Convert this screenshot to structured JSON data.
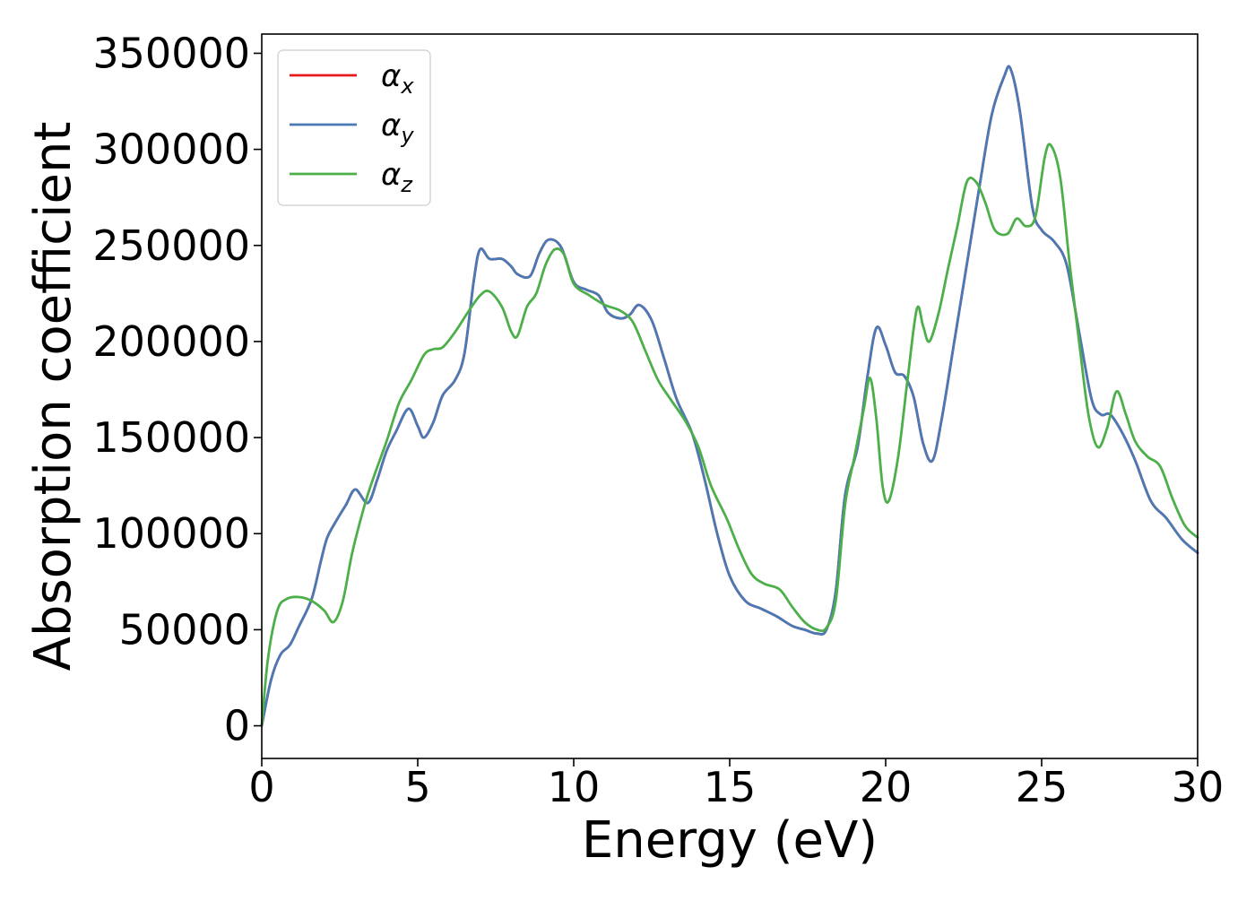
{
  "chart_data": {
    "type": "line",
    "title": "",
    "xlabel": "Energy (eV)",
    "ylabel": "Absorption coefficient",
    "xlim": [
      0,
      30
    ],
    "ylim": [
      -17000,
      360000
    ],
    "x_ticks": [
      0,
      5,
      10,
      15,
      20,
      25,
      30
    ],
    "x_tick_labels": [
      "0",
      "5",
      "10",
      "15",
      "20",
      "25",
      "30"
    ],
    "y_ticks": [
      0,
      50000,
      100000,
      150000,
      200000,
      250000,
      300000,
      350000
    ],
    "y_tick_labels": [
      "0",
      "50000",
      "100000",
      "150000",
      "200000",
      "250000",
      "300000",
      "350000"
    ],
    "grid": false,
    "legend_position": "top-left",
    "series": [
      {
        "name": "α_x",
        "symbol": "α",
        "subscript": "x",
        "color": "#e41a1c",
        "points": [
          [
            0,
            0
          ],
          [
            0.3,
            24000
          ],
          [
            0.6,
            37000
          ],
          [
            0.9,
            42000
          ],
          [
            1.2,
            52000
          ],
          [
            1.6,
            66000
          ],
          [
            1.9,
            86000
          ],
          [
            2.1,
            98000
          ],
          [
            2.4,
            107000
          ],
          [
            2.7,
            115000
          ],
          [
            3.0,
            123000
          ],
          [
            3.4,
            116000
          ],
          [
            3.7,
            128000
          ],
          [
            4.0,
            143000
          ],
          [
            4.3,
            153000
          ],
          [
            4.7,
            165000
          ],
          [
            5.0,
            156000
          ],
          [
            5.2,
            150000
          ],
          [
            5.5,
            158000
          ],
          [
            5.8,
            172000
          ],
          [
            6.2,
            180000
          ],
          [
            6.5,
            194000
          ],
          [
            6.8,
            232000
          ],
          [
            7.0,
            248000
          ],
          [
            7.3,
            243000
          ],
          [
            7.7,
            243000
          ],
          [
            8.0,
            239000
          ],
          [
            8.2,
            235000
          ],
          [
            8.6,
            234000
          ],
          [
            8.9,
            246000
          ],
          [
            9.2,
            253000
          ],
          [
            9.6,
            249000
          ],
          [
            10.0,
            231000
          ],
          [
            10.4,
            227000
          ],
          [
            10.8,
            224000
          ],
          [
            11.1,
            215000
          ],
          [
            11.5,
            212000
          ],
          [
            11.8,
            214000
          ],
          [
            12.1,
            219000
          ],
          [
            12.5,
            211000
          ],
          [
            12.9,
            191000
          ],
          [
            13.3,
            170000
          ],
          [
            13.8,
            152000
          ],
          [
            14.2,
            128000
          ],
          [
            14.6,
            100000
          ],
          [
            15.0,
            78000
          ],
          [
            15.5,
            65000
          ],
          [
            16.0,
            61000
          ],
          [
            16.5,
            57000
          ],
          [
            17.0,
            52000
          ],
          [
            17.4,
            50000
          ],
          [
            17.8,
            48000
          ],
          [
            18.1,
            50000
          ],
          [
            18.4,
            70000
          ],
          [
            18.7,
            120000
          ],
          [
            19.1,
            145000
          ],
          [
            19.4,
            180000
          ],
          [
            19.7,
            207000
          ],
          [
            20.0,
            198000
          ],
          [
            20.3,
            184000
          ],
          [
            20.6,
            182000
          ],
          [
            20.9,
            171000
          ],
          [
            21.2,
            147000
          ],
          [
            21.5,
            138000
          ],
          [
            21.8,
            160000
          ],
          [
            22.2,
            200000
          ],
          [
            22.6,
            240000
          ],
          [
            23.0,
            280000
          ],
          [
            23.4,
            318000
          ],
          [
            23.8,
            338000
          ],
          [
            24.0,
            342000
          ],
          [
            24.3,
            320000
          ],
          [
            24.7,
            270000
          ],
          [
            25.0,
            258000
          ],
          [
            25.4,
            252000
          ],
          [
            25.8,
            240000
          ],
          [
            26.2,
            205000
          ],
          [
            26.6,
            170000
          ],
          [
            26.9,
            162000
          ],
          [
            27.2,
            162000
          ],
          [
            27.6,
            152000
          ],
          [
            28.0,
            138000
          ],
          [
            28.5,
            117000
          ],
          [
            29.0,
            108000
          ],
          [
            29.5,
            97000
          ],
          [
            30.0,
            90000
          ]
        ]
      },
      {
        "name": "α_y",
        "symbol": "α",
        "subscript": "y",
        "color": "#4a7ab5",
        "points": [
          [
            0,
            0
          ],
          [
            0.3,
            24000
          ],
          [
            0.6,
            37000
          ],
          [
            0.9,
            42000
          ],
          [
            1.2,
            52000
          ],
          [
            1.6,
            66000
          ],
          [
            1.9,
            86000
          ],
          [
            2.1,
            98000
          ],
          [
            2.4,
            107000
          ],
          [
            2.7,
            115000
          ],
          [
            3.0,
            123000
          ],
          [
            3.4,
            116000
          ],
          [
            3.7,
            128000
          ],
          [
            4.0,
            143000
          ],
          [
            4.3,
            153000
          ],
          [
            4.7,
            165000
          ],
          [
            5.0,
            156000
          ],
          [
            5.2,
            150000
          ],
          [
            5.5,
            158000
          ],
          [
            5.8,
            172000
          ],
          [
            6.2,
            180000
          ],
          [
            6.5,
            194000
          ],
          [
            6.8,
            232000
          ],
          [
            7.0,
            248000
          ],
          [
            7.3,
            243000
          ],
          [
            7.7,
            243000
          ],
          [
            8.0,
            239000
          ],
          [
            8.2,
            235000
          ],
          [
            8.6,
            234000
          ],
          [
            8.9,
            246000
          ],
          [
            9.2,
            253000
          ],
          [
            9.6,
            249000
          ],
          [
            10.0,
            231000
          ],
          [
            10.4,
            227000
          ],
          [
            10.8,
            224000
          ],
          [
            11.1,
            215000
          ],
          [
            11.5,
            212000
          ],
          [
            11.8,
            214000
          ],
          [
            12.1,
            219000
          ],
          [
            12.5,
            211000
          ],
          [
            12.9,
            191000
          ],
          [
            13.3,
            170000
          ],
          [
            13.8,
            152000
          ],
          [
            14.2,
            128000
          ],
          [
            14.6,
            100000
          ],
          [
            15.0,
            78000
          ],
          [
            15.5,
            65000
          ],
          [
            16.0,
            61000
          ],
          [
            16.5,
            57000
          ],
          [
            17.0,
            52000
          ],
          [
            17.4,
            50000
          ],
          [
            17.8,
            48000
          ],
          [
            18.1,
            50000
          ],
          [
            18.4,
            70000
          ],
          [
            18.7,
            120000
          ],
          [
            19.1,
            145000
          ],
          [
            19.4,
            180000
          ],
          [
            19.7,
            207000
          ],
          [
            20.0,
            198000
          ],
          [
            20.3,
            184000
          ],
          [
            20.6,
            182000
          ],
          [
            20.9,
            171000
          ],
          [
            21.2,
            147000
          ],
          [
            21.5,
            138000
          ],
          [
            21.8,
            160000
          ],
          [
            22.2,
            200000
          ],
          [
            22.6,
            240000
          ],
          [
            23.0,
            280000
          ],
          [
            23.4,
            318000
          ],
          [
            23.8,
            338000
          ],
          [
            24.0,
            342000
          ],
          [
            24.3,
            320000
          ],
          [
            24.7,
            270000
          ],
          [
            25.0,
            258000
          ],
          [
            25.4,
            252000
          ],
          [
            25.8,
            240000
          ],
          [
            26.2,
            205000
          ],
          [
            26.6,
            170000
          ],
          [
            26.9,
            162000
          ],
          [
            27.2,
            162000
          ],
          [
            27.6,
            152000
          ],
          [
            28.0,
            138000
          ],
          [
            28.5,
            117000
          ],
          [
            29.0,
            108000
          ],
          [
            29.5,
            97000
          ],
          [
            30.0,
            90000
          ]
        ]
      },
      {
        "name": "α_z",
        "symbol": "α",
        "subscript": "z",
        "color": "#4daf4a",
        "points": [
          [
            0,
            0
          ],
          [
            0.2,
            35000
          ],
          [
            0.5,
            60000
          ],
          [
            0.8,
            66000
          ],
          [
            1.2,
            67000
          ],
          [
            1.6,
            65000
          ],
          [
            2.0,
            60000
          ],
          [
            2.3,
            54000
          ],
          [
            2.6,
            65000
          ],
          [
            2.9,
            90000
          ],
          [
            3.3,
            115000
          ],
          [
            3.6,
            130000
          ],
          [
            4.0,
            148000
          ],
          [
            4.4,
            168000
          ],
          [
            4.8,
            180000
          ],
          [
            5.2,
            193000
          ],
          [
            5.5,
            196000
          ],
          [
            5.8,
            197000
          ],
          [
            6.2,
            205000
          ],
          [
            6.6,
            215000
          ],
          [
            7.0,
            224000
          ],
          [
            7.3,
            226000
          ],
          [
            7.7,
            218000
          ],
          [
            8.0,
            205000
          ],
          [
            8.2,
            203000
          ],
          [
            8.5,
            218000
          ],
          [
            8.8,
            225000
          ],
          [
            9.1,
            240000
          ],
          [
            9.4,
            248000
          ],
          [
            9.7,
            245000
          ],
          [
            10.0,
            230000
          ],
          [
            10.5,
            224000
          ],
          [
            11.0,
            219000
          ],
          [
            11.5,
            216000
          ],
          [
            11.9,
            210000
          ],
          [
            12.3,
            195000
          ],
          [
            12.7,
            180000
          ],
          [
            13.1,
            170000
          ],
          [
            13.6,
            158000
          ],
          [
            14.0,
            145000
          ],
          [
            14.4,
            125000
          ],
          [
            14.9,
            108000
          ],
          [
            15.3,
            92000
          ],
          [
            15.7,
            79000
          ],
          [
            16.1,
            74000
          ],
          [
            16.6,
            71000
          ],
          [
            17.0,
            62000
          ],
          [
            17.4,
            54000
          ],
          [
            17.8,
            50000
          ],
          [
            18.1,
            51000
          ],
          [
            18.4,
            65000
          ],
          [
            18.7,
            115000
          ],
          [
            19.0,
            140000
          ],
          [
            19.3,
            165000
          ],
          [
            19.5,
            181000
          ],
          [
            19.7,
            160000
          ],
          [
            19.9,
            125000
          ],
          [
            20.1,
            117000
          ],
          [
            20.4,
            140000
          ],
          [
            20.7,
            180000
          ],
          [
            21.0,
            217000
          ],
          [
            21.2,
            208000
          ],
          [
            21.4,
            200000
          ],
          [
            21.7,
            215000
          ],
          [
            22.0,
            238000
          ],
          [
            22.3,
            260000
          ],
          [
            22.6,
            283000
          ],
          [
            22.9,
            283000
          ],
          [
            23.2,
            272000
          ],
          [
            23.5,
            258000
          ],
          [
            23.9,
            256000
          ],
          [
            24.2,
            264000
          ],
          [
            24.5,
            260000
          ],
          [
            24.8,
            265000
          ],
          [
            25.1,
            296000
          ],
          [
            25.3,
            302000
          ],
          [
            25.6,
            285000
          ],
          [
            25.9,
            240000
          ],
          [
            26.2,
            200000
          ],
          [
            26.5,
            162000
          ],
          [
            26.8,
            145000
          ],
          [
            27.1,
            155000
          ],
          [
            27.4,
            174000
          ],
          [
            27.7,
            162000
          ],
          [
            28.0,
            148000
          ],
          [
            28.4,
            140000
          ],
          [
            28.8,
            135000
          ],
          [
            29.2,
            118000
          ],
          [
            29.6,
            104000
          ],
          [
            30.0,
            98000
          ]
        ]
      }
    ]
  }
}
